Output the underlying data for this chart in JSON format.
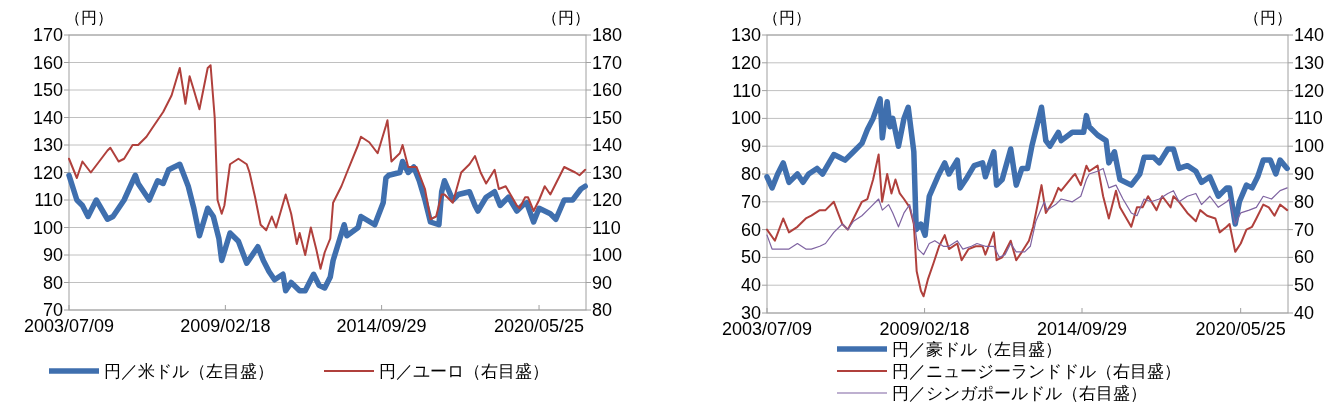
{
  "chart_data": [
    {
      "type": "line",
      "ylabel": "（円）",
      "y2label": "（円）",
      "xlim": [
        "2003-07-09",
        "2022-01-31"
      ],
      "xticks": [
        {
          "value": "2003-07-09",
          "label": "2003/07/09"
        },
        {
          "value": "2009-02-18",
          "label": "2009/02/18"
        },
        {
          "value": "2014-09-29",
          "label": "2014/09/29"
        },
        {
          "value": "2020-05-25",
          "label": "2020/05/25"
        }
      ],
      "ylim": [
        70,
        170
      ],
      "yticks": [
        70,
        80,
        90,
        100,
        110,
        120,
        130,
        140,
        150,
        160,
        170
      ],
      "y2lim": [
        80,
        180
      ],
      "y2ticks": [
        80,
        90,
        100,
        110,
        120,
        130,
        140,
        150,
        160,
        170,
        180
      ],
      "grid": "y",
      "legend": "bottom",
      "series": [
        {
          "name": "円／米ドル（左目盛）",
          "color": "#3f6fae",
          "axis": "y",
          "x": [
            "2003-07-09",
            "2003-10-20",
            "2004-01-01",
            "2004-03-15",
            "2004-07-01",
            "2004-11-25",
            "2005-02-05",
            "2005-07-01",
            "2005-11-25",
            "2006-01-01",
            "2006-05-26",
            "2006-09-13",
            "2006-11-25",
            "2007-02-05",
            "2007-07-01",
            "2007-10-20",
            "2008-01-01",
            "2008-03-15",
            "2008-07-01",
            "2008-09-13",
            "2008-11-25",
            "2009-01-01",
            "2009-04-20",
            "2009-08-08",
            "2009-11-25",
            "2010-04-20",
            "2010-07-01",
            "2010-09-13",
            "2010-11-25",
            "2011-03-15",
            "2011-04-20",
            "2011-07-01",
            "2011-10-20",
            "2012-01-01",
            "2012-04-20",
            "2012-07-01",
            "2012-09-13",
            "2012-11-25",
            "2013-01-01",
            "2013-05-26",
            "2013-07-01",
            "2013-11-25",
            "2014-01-01",
            "2014-07-01",
            "2014-10-20",
            "2014-11-25",
            "2015-01-01",
            "2015-05-26",
            "2015-07-01",
            "2015-09-13",
            "2015-11-25",
            "2016-02-05",
            "2016-04-20",
            "2016-07-01",
            "2016-10-20",
            "2016-11-25",
            "2017-01-01",
            "2017-04-20",
            "2017-07-01",
            "2017-11-25",
            "2018-02-05",
            "2018-03-15",
            "2018-07-01",
            "2018-10-20",
            "2019-01-01",
            "2019-04-20",
            "2019-08-08",
            "2019-10-20",
            "2019-12-15",
            "2020-03-15",
            "2020-05-26",
            "2020-10-20",
            "2021-01-01",
            "2021-04-20",
            "2021-08-08",
            "2021-11-25",
            "2022-01-20"
          ],
          "values": [
            119,
            110,
            108,
            104,
            110,
            103,
            104,
            110,
            119,
            116,
            110,
            117,
            116,
            121,
            123,
            115,
            107,
            97,
            107,
            104,
            96,
            88,
            98,
            95,
            87,
            93,
            88,
            84,
            81,
            83,
            77,
            80,
            77,
            77,
            83,
            79,
            78,
            82,
            88,
            101,
            97,
            100,
            104,
            101,
            109,
            118,
            119,
            120,
            124,
            120,
            122,
            117,
            110,
            102,
            101,
            113,
            117,
            110,
            112,
            113,
            108,
            106,
            111,
            113,
            108,
            111,
            106,
            108,
            109,
            102,
            107,
            105,
            103,
            110,
            110,
            114,
            115
          ]
        },
        {
          "name": "円／ユーロ（右目盛）",
          "color": "#b0403c",
          "axis": "y2",
          "x": [
            "2003-07-09",
            "2003-10-20",
            "2004-01-01",
            "2004-04-20",
            "2004-08-08",
            "2004-11-25",
            "2005-01-01",
            "2005-04-20",
            "2005-07-01",
            "2005-10-20",
            "2006-01-01",
            "2006-04-20",
            "2006-07-01",
            "2006-11-25",
            "2007-03-15",
            "2007-07-01",
            "2007-09-13",
            "2007-11-07",
            "2008-01-01",
            "2008-03-15",
            "2008-07-01",
            "2008-08-08",
            "2008-10-01",
            "2008-11-07",
            "2009-01-01",
            "2009-02-05",
            "2009-04-20",
            "2009-08-08",
            "2009-11-25",
            "2010-01-01",
            "2010-03-15",
            "2010-05-26",
            "2010-08-08",
            "2010-10-20",
            "2010-12-15",
            "2011-04-20",
            "2011-07-01",
            "2011-09-13",
            "2011-10-20",
            "2012-01-01",
            "2012-03-15",
            "2012-05-26",
            "2012-07-20",
            "2012-09-13",
            "2012-11-25",
            "2013-01-01",
            "2013-04-20",
            "2013-07-01",
            "2013-11-25",
            "2014-01-01",
            "2014-04-20",
            "2014-08-08",
            "2014-11-25",
            "2014-12-15",
            "2015-02-05",
            "2015-05-26",
            "2015-07-01",
            "2015-09-13",
            "2016-01-01",
            "2016-04-20",
            "2016-07-01",
            "2016-09-13",
            "2016-11-25",
            "2017-01-01",
            "2017-04-20",
            "2017-08-08",
            "2017-11-25",
            "2018-02-05",
            "2018-04-20",
            "2018-07-01",
            "2018-10-20",
            "2018-12-15",
            "2019-03-15",
            "2019-08-08",
            "2019-09-13",
            "2019-11-25",
            "2020-01-01",
            "2020-03-15",
            "2020-05-26",
            "2020-08-08",
            "2020-10-20",
            "2021-01-01",
            "2021-04-20",
            "2021-07-01",
            "2021-09-13",
            "2021-11-07",
            "2022-01-20"
          ],
          "values": [
            135,
            128,
            134,
            130,
            134,
            138,
            139,
            134,
            135,
            140,
            140,
            143,
            146,
            152,
            158,
            168,
            155,
            165,
            160,
            153,
            168,
            169,
            150,
            120,
            115,
            118,
            133,
            135,
            133,
            130,
            121,
            111,
            109,
            114,
            110,
            122,
            115,
            104,
            108,
            100,
            110,
            102,
            95,
            101,
            106,
            119,
            125,
            130,
            140,
            143,
            141,
            137,
            147,
            149,
            134,
            137,
            140,
            132,
            132,
            124,
            113,
            114,
            122,
            122,
            119,
            130,
            133,
            136,
            130,
            126,
            131,
            124,
            125,
            118,
            117,
            121,
            121,
            116,
            120,
            125,
            122,
            126,
            132,
            131,
            130,
            129,
            131
          ]
        }
      ]
    },
    {
      "type": "line",
      "ylabel": "（円）",
      "y2label": "（円）",
      "xlim": [
        "2003-07-09",
        "2022-01-31"
      ],
      "xticks": [
        {
          "value": "2003-07-09",
          "label": "2003/07/09"
        },
        {
          "value": "2009-02-18",
          "label": "2009/02/18"
        },
        {
          "value": "2014-09-29",
          "label": "2014/09/29"
        },
        {
          "value": "2020-05-25",
          "label": "2020/05/25"
        }
      ],
      "ylim": [
        30,
        130
      ],
      "yticks": [
        30,
        40,
        50,
        60,
        70,
        80,
        90,
        100,
        110,
        120,
        130
      ],
      "y2lim": [
        40,
        140
      ],
      "y2ticks": [
        40,
        50,
        60,
        70,
        80,
        90,
        100,
        110,
        120,
        130,
        140
      ],
      "grid": "y",
      "legend": "bottom",
      "series": [
        {
          "name": "円／豪ドル（左目盛）",
          "color": "#3f6fae",
          "axis": "y",
          "x": [
            "2003-07-09",
            "2003-09-13",
            "2003-11-25",
            "2004-02-05",
            "2004-04-20",
            "2004-08-08",
            "2004-10-20",
            "2005-01-01",
            "2005-04-20",
            "2005-07-01",
            "2005-11-25",
            "2006-02-05",
            "2006-04-20",
            "2006-08-08",
            "2006-11-25",
            "2007-02-05",
            "2007-04-20",
            "2007-07-20",
            "2007-08-18",
            "2007-10-20",
            "2007-11-25",
            "2008-01-01",
            "2008-03-15",
            "2008-05-26",
            "2008-07-20",
            "2008-10-01",
            "2008-11-01",
            "2009-01-01",
            "2009-02-25",
            "2009-04-20",
            "2009-08-08",
            "2009-11-07",
            "2010-01-01",
            "2010-04-20",
            "2010-05-26",
            "2010-08-08",
            "2010-11-25",
            "2011-03-15",
            "2011-04-20",
            "2011-08-08",
            "2011-09-13",
            "2011-11-25",
            "2012-03-15",
            "2012-05-26",
            "2012-08-08",
            "2012-10-20",
            "2012-12-15",
            "2013-04-20",
            "2013-06-15",
            "2013-08-08",
            "2013-11-25",
            "2014-01-01",
            "2014-05-26",
            "2014-10-20",
            "2014-11-25",
            "2015-01-01",
            "2015-04-20",
            "2015-08-08",
            "2015-09-13",
            "2015-11-25",
            "2016-02-05",
            "2016-07-01",
            "2016-10-20",
            "2016-12-15",
            "2017-04-20",
            "2017-07-01",
            "2017-10-20",
            "2018-01-01",
            "2018-03-15",
            "2018-07-01",
            "2018-10-20",
            "2019-01-01",
            "2019-04-20",
            "2019-08-08",
            "2019-11-25",
            "2020-01-01",
            "2020-03-15",
            "2020-05-08",
            "2020-08-08",
            "2020-10-20",
            "2021-01-01",
            "2021-03-15",
            "2021-06-15",
            "2021-08-26",
            "2021-10-20",
            "2022-01-20"
          ],
          "values": [
            79,
            75,
            80,
            84,
            77,
            80,
            77,
            80,
            82,
            80,
            87,
            86,
            85,
            88,
            91,
            96,
            100,
            107,
            93,
            106,
            97,
            100,
            90,
            100,
            104,
            88,
            60,
            62,
            58,
            72,
            79,
            84,
            80,
            85,
            75,
            78,
            83,
            84,
            79,
            88,
            76,
            78,
            89,
            76,
            82,
            82,
            90,
            104,
            92,
            90,
            95,
            92,
            95,
            95,
            101,
            97,
            94,
            92,
            84,
            88,
            78,
            76,
            80,
            86,
            86,
            84,
            89,
            89,
            82,
            83,
            81,
            77,
            79,
            72,
            75,
            75,
            62,
            70,
            76,
            75,
            79,
            85,
            85,
            80,
            85,
            82
          ]
        },
        {
          "name": "円／ニュージーランドドル（右目盛）",
          "color": "#b0403c",
          "axis": "y2",
          "x": [
            "2003-07-09",
            "2003-10-20",
            "2004-02-05",
            "2004-04-20",
            "2004-08-08",
            "2004-11-25",
            "2005-02-05",
            "2005-05-26",
            "2005-08-08",
            "2005-11-25",
            "2006-03-15",
            "2006-05-26",
            "2006-08-08",
            "2006-11-25",
            "2007-02-05",
            "2007-04-20",
            "2007-07-01",
            "2007-08-15",
            "2007-10-20",
            "2007-12-15",
            "2008-02-05",
            "2008-04-01",
            "2008-05-26",
            "2008-08-08",
            "2008-10-01",
            "2008-11-07",
            "2009-01-01",
            "2009-02-05",
            "2009-04-01",
            "2009-06-15",
            "2009-08-26",
            "2009-11-07",
            "2010-01-01",
            "2010-04-20",
            "2010-06-15",
            "2010-09-13",
            "2010-12-15",
            "2011-03-15",
            "2011-04-20",
            "2011-08-08",
            "2011-09-13",
            "2011-11-25",
            "2012-03-15",
            "2012-05-26",
            "2012-08-08",
            "2012-11-07",
            "2013-01-01",
            "2013-04-20",
            "2013-06-15",
            "2013-09-13",
            "2013-11-25",
            "2014-01-01",
            "2014-05-26",
            "2014-07-01",
            "2014-09-13",
            "2014-11-25",
            "2015-01-01",
            "2015-04-20",
            "2015-07-01",
            "2015-09-13",
            "2015-12-15",
            "2016-02-05",
            "2016-07-01",
            "2016-09-13",
            "2016-11-25",
            "2017-02-05",
            "2017-05-26",
            "2017-08-08",
            "2017-11-25",
            "2018-01-01",
            "2018-03-15",
            "2018-07-01",
            "2018-10-20",
            "2018-12-15",
            "2019-03-15",
            "2019-07-01",
            "2019-08-26",
            "2019-11-25",
            "2020-01-01",
            "2020-03-15",
            "2020-05-26",
            "2020-08-08",
            "2020-10-20",
            "2020-12-15",
            "2021-03-15",
            "2021-05-26",
            "2021-08-08",
            "2021-10-20",
            "2022-01-20"
          ],
          "values": [
            70,
            66,
            74,
            69,
            71,
            74,
            75,
            77,
            77,
            80,
            72,
            70,
            74,
            80,
            81,
            88,
            97,
            80,
            90,
            83,
            88,
            83,
            81,
            78,
            72,
            55,
            48,
            46,
            52,
            58,
            64,
            68,
            63,
            65,
            59,
            63,
            64,
            64,
            61,
            69,
            59,
            60,
            66,
            59,
            62,
            66,
            71,
            86,
            76,
            80,
            85,
            84,
            89,
            90,
            86,
            93,
            91,
            93,
            82,
            74,
            84,
            78,
            71,
            78,
            78,
            82,
            77,
            82,
            78,
            82,
            80,
            76,
            73,
            77,
            75,
            74,
            69,
            71,
            72,
            62,
            65,
            70,
            71,
            74,
            79,
            78,
            75,
            79,
            77
          ]
        },
        {
          "name": "円／シンガポールドル（右目盛）",
          "color": "#7f63a1",
          "axis": "y2",
          "x": [
            "2003-07-09",
            "2003-09-13",
            "2004-01-01",
            "2004-04-20",
            "2004-08-08",
            "2004-11-25",
            "2005-02-05",
            "2005-05-26",
            "2005-08-08",
            "2005-11-25",
            "2006-03-15",
            "2006-05-26",
            "2006-08-08",
            "2006-11-25",
            "2007-03-15",
            "2007-07-01",
            "2007-08-18",
            "2007-11-07",
            "2008-01-01",
            "2008-03-15",
            "2008-05-26",
            "2008-08-08",
            "2008-10-20",
            "2008-11-25",
            "2009-02-05",
            "2009-04-20",
            "2009-07-01",
            "2009-10-20",
            "2010-01-01",
            "2010-04-20",
            "2010-07-01",
            "2010-10-20",
            "2011-01-01",
            "2011-04-20",
            "2011-08-08",
            "2011-10-20",
            "2012-01-01",
            "2012-03-15",
            "2012-05-26",
            "2012-09-13",
            "2012-11-25",
            "2013-02-05",
            "2013-05-26",
            "2013-07-01",
            "2013-10-20",
            "2014-01-01",
            "2014-05-26",
            "2014-09-13",
            "2014-11-25",
            "2015-01-01",
            "2015-04-20",
            "2015-07-01",
            "2015-09-13",
            "2015-12-15",
            "2016-03-15",
            "2016-07-01",
            "2016-09-13",
            "2016-12-15",
            "2017-03-15",
            "2017-07-01",
            "2017-10-20",
            "2018-01-01",
            "2018-03-15",
            "2018-07-01",
            "2018-10-20",
            "2019-01-01",
            "2019-04-20",
            "2019-08-08",
            "2019-11-25",
            "2020-01-01",
            "2020-03-15",
            "2020-05-26",
            "2020-09-13",
            "2020-12-15",
            "2021-03-15",
            "2021-07-01",
            "2021-10-20",
            "2022-01-20"
          ],
          "values": [
            68,
            63,
            63,
            63,
            65,
            63,
            63,
            64,
            65,
            69,
            72,
            70,
            73,
            75,
            78,
            81,
            77,
            79,
            76,
            71,
            76,
            79,
            70,
            63,
            61,
            65,
            66,
            64,
            64,
            66,
            63,
            64,
            65,
            64,
            64,
            60,
            61,
            65,
            62,
            62,
            64,
            73,
            80,
            77,
            79,
            81,
            80,
            82,
            88,
            90,
            91,
            92,
            85,
            86,
            81,
            76,
            75,
            81,
            80,
            81,
            83,
            84,
            80,
            82,
            83,
            79,
            82,
            78,
            80,
            81,
            72,
            76,
            77,
            78,
            82,
            81,
            84,
            85
          ]
        }
      ]
    }
  ]
}
